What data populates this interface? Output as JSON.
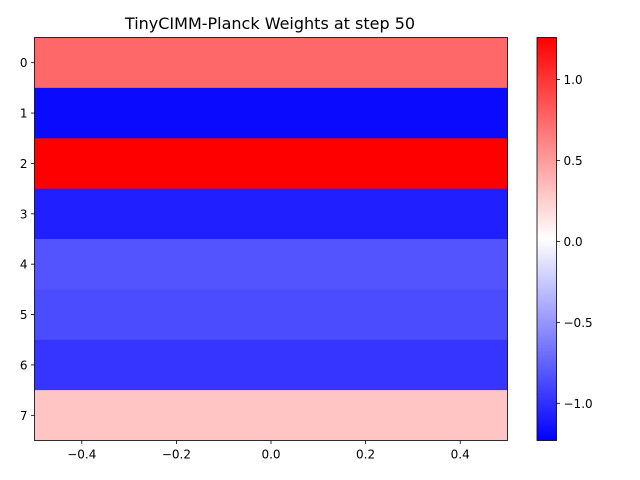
{
  "chart_data": {
    "type": "heatmap",
    "title": "TinyCIMM-Planck Weights at step 50",
    "xlabel": "",
    "ylabel": "",
    "colormap": "bwr",
    "rows": [
      "0",
      "1",
      "2",
      "3",
      "4",
      "5",
      "6",
      "7"
    ],
    "values": [
      0.75,
      -1.18,
      1.26,
      -1.08,
      -0.82,
      -0.86,
      -0.97,
      0.3
    ],
    "xlim": [
      -0.5,
      0.5
    ],
    "x_ticks": [
      -0.4,
      -0.2,
      0.0,
      0.2,
      0.4
    ],
    "x_tick_labels": [
      "−0.4",
      "−0.2",
      "0.0",
      "0.2",
      "0.4"
    ],
    "colorbar": {
      "range": [
        -1.23,
        1.26
      ],
      "ticks": [
        -1.0,
        -0.5,
        0.0,
        0.5,
        1.0
      ],
      "tick_labels": [
        "−1.0",
        "−0.5",
        "0.0",
        "0.5",
        "1.0"
      ]
    },
    "grid": false
  }
}
